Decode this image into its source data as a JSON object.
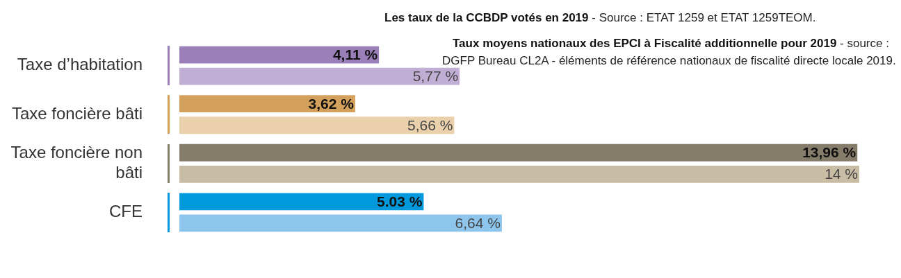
{
  "chart_data": {
    "type": "bar",
    "orientation": "horizontal",
    "categories": [
      "Taxe d’habitation",
      "Taxe foncière bâti",
      "Taxe foncière non bâti",
      "CFE"
    ],
    "series": [
      {
        "colors": [
          "#9b7fb8",
          "#d4a15c",
          "#857c6a",
          "#0099dd"
        ],
        "values": [
          4.11,
          3.62,
          13.96,
          5.03
        ],
        "value_labels": [
          "4,11 %",
          "3,62 %",
          "13,96 %",
          "5.03 %"
        ]
      },
      {
        "colors": [
          "#c0aed4",
          "#ebd0ac",
          "#c9bca4",
          "#8ec5ec"
        ],
        "values": [
          5.77,
          5.66,
          14,
          6.64
        ],
        "value_labels": [
          "5,77 %",
          "5,66 %",
          "14 %",
          "6,64 %"
        ]
      }
    ],
    "annotations": [
      "Les taux de la CCBDP votés en 2019",
      "- Source : ETAT 1259 et ETAT 1259TEOM.",
      "Taux moyens nationaux des EPCI à Fiscalité additionnelle pour 2019",
      "- source : DGFP Bureau CL2A - éléments de référence nationaux de fiscalité directe locale 2019."
    ]
  }
}
